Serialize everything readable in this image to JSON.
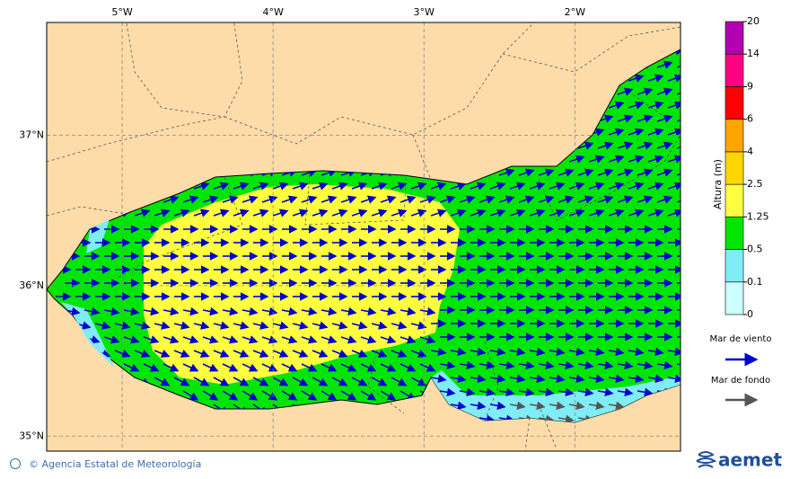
{
  "map": {
    "lon_ticks": [
      {
        "value": -5,
        "label": "5°W"
      },
      {
        "value": -4,
        "label": "4°W"
      },
      {
        "value": -3,
        "label": "3°W"
      },
      {
        "value": -2,
        "label": "2°W"
      }
    ],
    "lat_ticks": [
      {
        "value": 37,
        "label": "37°N"
      },
      {
        "value": 36,
        "label": "36°N"
      },
      {
        "value": 35,
        "label": "35°N"
      }
    ],
    "lonlim": [
      -5.5,
      -1.3
    ],
    "latlim": [
      34.9,
      37.75
    ]
  },
  "colorbar": {
    "label": "Altura (m)",
    "ticks": [
      0,
      0.1,
      0.5,
      1.25,
      2.5,
      4,
      6,
      9,
      14,
      20
    ],
    "colors": [
      "#ccffff",
      "#80ecf5",
      "#00e600",
      "#ffff40",
      "#ffd700",
      "#ffa500",
      "#ff0000",
      "#ff0080",
      "#b000b0"
    ]
  },
  "legend": {
    "wind_sea": "Mar de viento",
    "swell": "Mar de fondo"
  },
  "footer": {
    "credit": "© Agencia Estatal de Meteorología",
    "logo": "aemet"
  }
}
